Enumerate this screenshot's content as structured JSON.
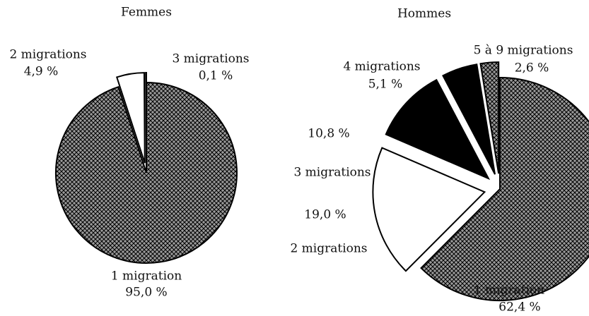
{
  "chart_data": [
    {
      "type": "pie",
      "title": "Femmes",
      "categories": [
        "1 migration",
        "2 migrations",
        "3 migrations"
      ],
      "values": [
        95.0,
        4.9,
        0.1
      ],
      "value_labels": [
        "95,0 %",
        "4,9 %",
        "0,1 %"
      ],
      "colors": [
        "#9a9a9a",
        "#ffffff",
        "#000000"
      ],
      "hatch": [
        true,
        false,
        false
      ]
    },
    {
      "type": "pie",
      "title": "Hommes",
      "categories": [
        "1 migration",
        "2 migrations",
        "3 migrations",
        "4 migrations",
        "5 à 9 migrations"
      ],
      "values": [
        62.4,
        19.0,
        10.8,
        5.1,
        2.6
      ],
      "value_labels": [
        "62,4 %",
        "19,0 %",
        "10,8 %",
        "5,1 %",
        "2,6 %"
      ],
      "colors": [
        "#9a9a9a",
        "#ffffff",
        "#000000",
        "#000000",
        "#9a9a9a"
      ],
      "hatch": [
        true,
        false,
        false,
        false,
        true
      ]
    }
  ]
}
